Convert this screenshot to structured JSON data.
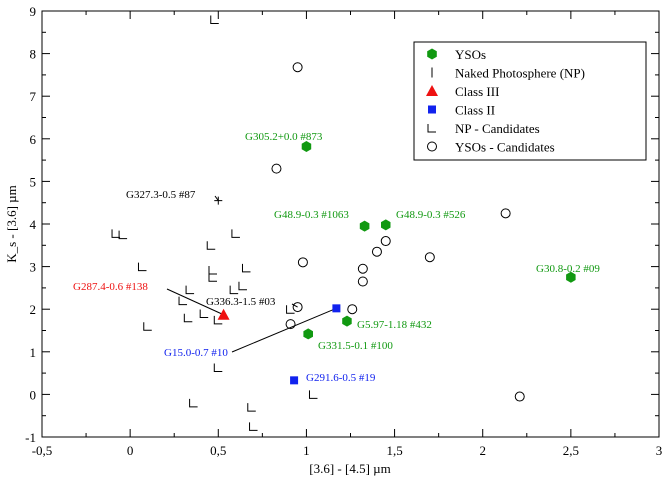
{
  "chart_data": {
    "type": "scatter",
    "title": "",
    "xlabel": "[3.6] - [4.5] µm",
    "ylabel": "K_s - [3.6] µm",
    "xlim": [
      -0.5,
      3
    ],
    "ylim": [
      -1,
      9
    ],
    "x_ticks": [
      -0.5,
      0,
      0.5,
      1,
      1.5,
      2,
      2.5,
      3
    ],
    "x_tick_labels": [
      "-0,5",
      "0",
      "0,5",
      "1",
      "1,5",
      "2",
      "2,5",
      "3"
    ],
    "y_ticks": [
      -1,
      0,
      1,
      2,
      3,
      4,
      5,
      6,
      7,
      8,
      9
    ],
    "y_tick_labels": [
      "-1",
      "0",
      "1",
      "2",
      "3",
      "4",
      "5",
      "6",
      "7",
      "8",
      "9"
    ],
    "legend_position": "top-right",
    "series": [
      {
        "name": "YSOs",
        "marker": "hexagon",
        "color": "#119911",
        "points": [
          [
            1.0,
            5.82
          ],
          [
            1.33,
            3.95
          ],
          [
            1.45,
            3.98
          ],
          [
            1.01,
            1.42
          ],
          [
            1.23,
            1.72
          ],
          [
            2.5,
            2.75
          ]
        ]
      },
      {
        "name": "Naked Photosphere (NP)",
        "marker": "plus",
        "color": "#000000",
        "points": [
          [
            0.5,
            4.55
          ]
        ]
      },
      {
        "name": "Class III",
        "marker": "triangle",
        "color": "#ee1111",
        "points": [
          [
            0.53,
            1.87
          ]
        ]
      },
      {
        "name": "Class II",
        "marker": "square",
        "color": "#1122ee",
        "points": [
          [
            1.17,
            2.02
          ],
          [
            0.93,
            0.33
          ]
        ]
      },
      {
        "name": "NP - Candidates",
        "marker": "corner",
        "color": "#000000",
        "points": [
          [
            0.48,
            8.8
          ],
          [
            0.6,
            3.78
          ],
          [
            -0.08,
            3.78
          ],
          [
            -0.04,
            3.75
          ],
          [
            0.46,
            3.5
          ],
          [
            0.47,
            2.92
          ],
          [
            0.47,
            2.75
          ],
          [
            0.66,
            2.97
          ],
          [
            0.07,
            3.0
          ],
          [
            0.34,
            2.46
          ],
          [
            0.64,
            2.55
          ],
          [
            0.59,
            2.46
          ],
          [
            0.3,
            2.2
          ],
          [
            0.1,
            1.6
          ],
          [
            0.42,
            1.9
          ],
          [
            0.5,
            1.75
          ],
          [
            0.33,
            1.8
          ],
          [
            0.91,
            2.0
          ],
          [
            0.5,
            0.63
          ],
          [
            0.36,
            -0.2
          ],
          [
            1.04,
            0.0
          ],
          [
            0.69,
            -0.3
          ],
          [
            0.7,
            -0.75
          ]
        ]
      },
      {
        "name": "YSOs - Candidates",
        "marker": "circle",
        "color": "#000000",
        "points": [
          [
            0.95,
            7.68
          ],
          [
            0.83,
            5.3
          ],
          [
            0.98,
            3.1
          ],
          [
            0.95,
            2.05
          ],
          [
            0.91,
            1.65
          ],
          [
            1.26,
            2.0
          ],
          [
            1.32,
            2.95
          ],
          [
            1.32,
            2.65
          ],
          [
            1.4,
            3.35
          ],
          [
            1.45,
            3.6
          ],
          [
            1.7,
            3.22
          ],
          [
            2.13,
            4.25
          ],
          [
            2.21,
            -0.05
          ]
        ]
      }
    ],
    "annotations": [
      {
        "text": "G305.2+0.0 #873",
        "color": "#119911",
        "x": 1.0,
        "y": 5.82
      },
      {
        "text": "G327.3-0.5 #87",
        "color": "#000000",
        "x": 0.5,
        "y": 4.55
      },
      {
        "text": "G48.9-0.3 #1063",
        "color": "#119911",
        "x": 1.33,
        "y": 3.95
      },
      {
        "text": "G48.9-0.3 #526",
        "color": "#119911",
        "x": 1.45,
        "y": 3.98
      },
      {
        "text": "G30.8-0.2 #09",
        "color": "#119911",
        "x": 2.5,
        "y": 2.75
      },
      {
        "text": "G287.4-0.6 #138",
        "color": "#ee1111",
        "x": 0.53,
        "y": 1.87
      },
      {
        "text": "G336.3-1.5 #03",
        "color": "#000000",
        "x": 0.95,
        "y": 2.05
      },
      {
        "text": "G5.97-1.18 #432",
        "color": "#119911",
        "x": 1.23,
        "y": 1.72
      },
      {
        "text": "G331.5-0.1 #100",
        "color": "#119911",
        "x": 1.01,
        "y": 1.42
      },
      {
        "text": "G15.0-0.7 #10",
        "color": "#1122ee",
        "x": 1.17,
        "y": 2.02
      },
      {
        "text": "G291.6-0.5 #19",
        "color": "#1122ee",
        "x": 0.93,
        "y": 0.33
      }
    ]
  }
}
